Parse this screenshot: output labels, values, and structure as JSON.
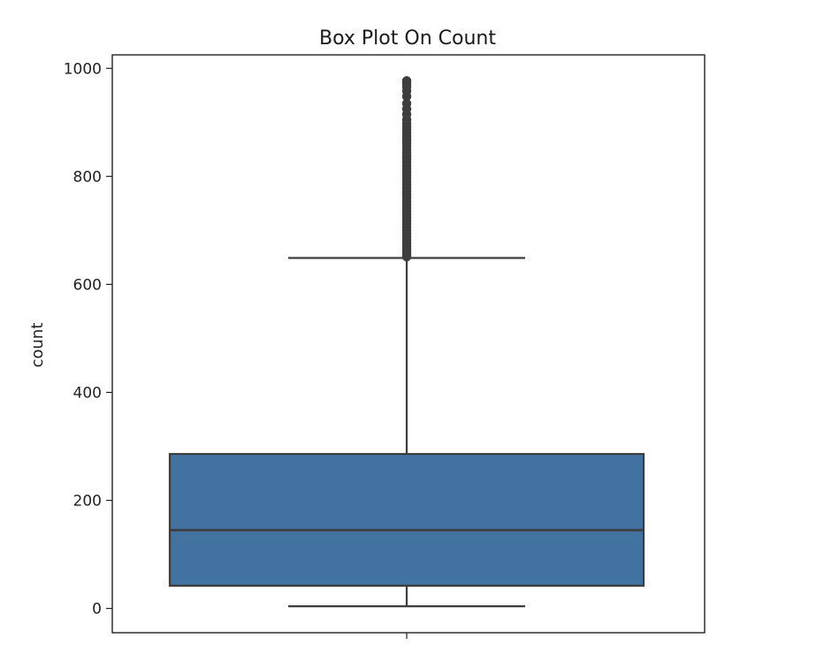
{
  "chart_data": {
    "type": "box",
    "title": "Box Plot On Count",
    "xlabel": "",
    "ylabel": "count",
    "ylim": [
      -45,
      1025
    ],
    "yticks": [
      0,
      200,
      400,
      600,
      800,
      1000
    ],
    "grid": false,
    "legend": "none",
    "series": [
      {
        "whisker_low": 4,
        "q1": 42,
        "median": 145,
        "q3": 286,
        "whisker_high": 649,
        "outlier_range": [
          651,
          977
        ],
        "outliers": [
          651,
          655,
          660,
          665,
          670,
          676,
          682,
          688,
          694,
          700,
          706,
          712,
          718,
          724,
          730,
          736,
          742,
          748,
          754,
          760,
          766,
          772,
          778,
          784,
          790,
          796,
          802,
          808,
          814,
          820,
          826,
          832,
          838,
          844,
          850,
          856,
          862,
          868,
          874,
          880,
          886,
          892,
          898,
          905,
          915,
          925,
          935,
          948,
          958,
          966,
          972,
          977
        ]
      }
    ],
    "colors": {
      "box_fill": "#4272a0",
      "line": "#3d3d3d",
      "frame": "#222222"
    }
  }
}
